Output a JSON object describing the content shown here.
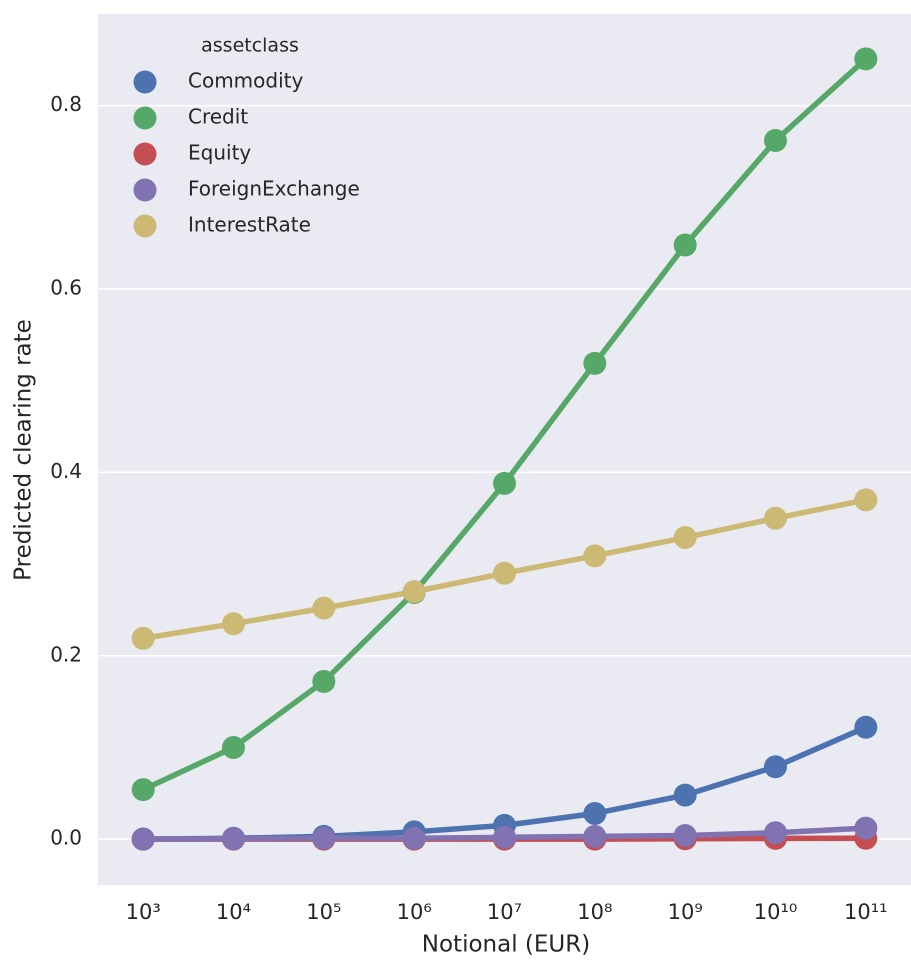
{
  "chart_data": {
    "type": "pointplot",
    "xlabel": "Notional (EUR)",
    "ylabel": "Predicted clearing rate",
    "categories": [
      "10³",
      "10⁴",
      "10⁵",
      "10⁶",
      "10⁷",
      "10⁸",
      "10⁹",
      "10¹⁰",
      "10¹¹"
    ],
    "series": [
      {
        "name": "Commodity",
        "color": "#4c72b0",
        "values": [
          0.0,
          0.001,
          0.003,
          0.008,
          0.015,
          0.028,
          0.048,
          0.079,
          0.122
        ]
      },
      {
        "name": "Credit",
        "color": "#55a868",
        "values": [
          0.054,
          0.1,
          0.172,
          0.269,
          0.388,
          0.519,
          0.648,
          0.762,
          0.851
        ]
      },
      {
        "name": "Equity",
        "color": "#c44e52",
        "values": [
          0.0,
          0.0,
          0.0,
          0.0,
          0.0,
          0.0,
          0.0005,
          0.0008,
          0.001
        ]
      },
      {
        "name": "ForeignExchange",
        "color": "#8172b2",
        "values": [
          0.0,
          0.0005,
          0.001,
          0.001,
          0.002,
          0.003,
          0.004,
          0.007,
          0.012
        ]
      },
      {
        "name": "InterestRate",
        "color": "#ccb974",
        "values": [
          0.219,
          0.235,
          0.252,
          0.27,
          0.29,
          0.309,
          0.329,
          0.35,
          0.37
        ]
      }
    ],
    "legend_title": "assetclass",
    "legend": "upper left",
    "ylim": [
      -0.05,
      0.9
    ],
    "yticks": [
      {
        "value": 0,
        "label": "0.0"
      },
      0.2,
      0.4,
      0.6,
      0.8
    ],
    "grid": true
  }
}
